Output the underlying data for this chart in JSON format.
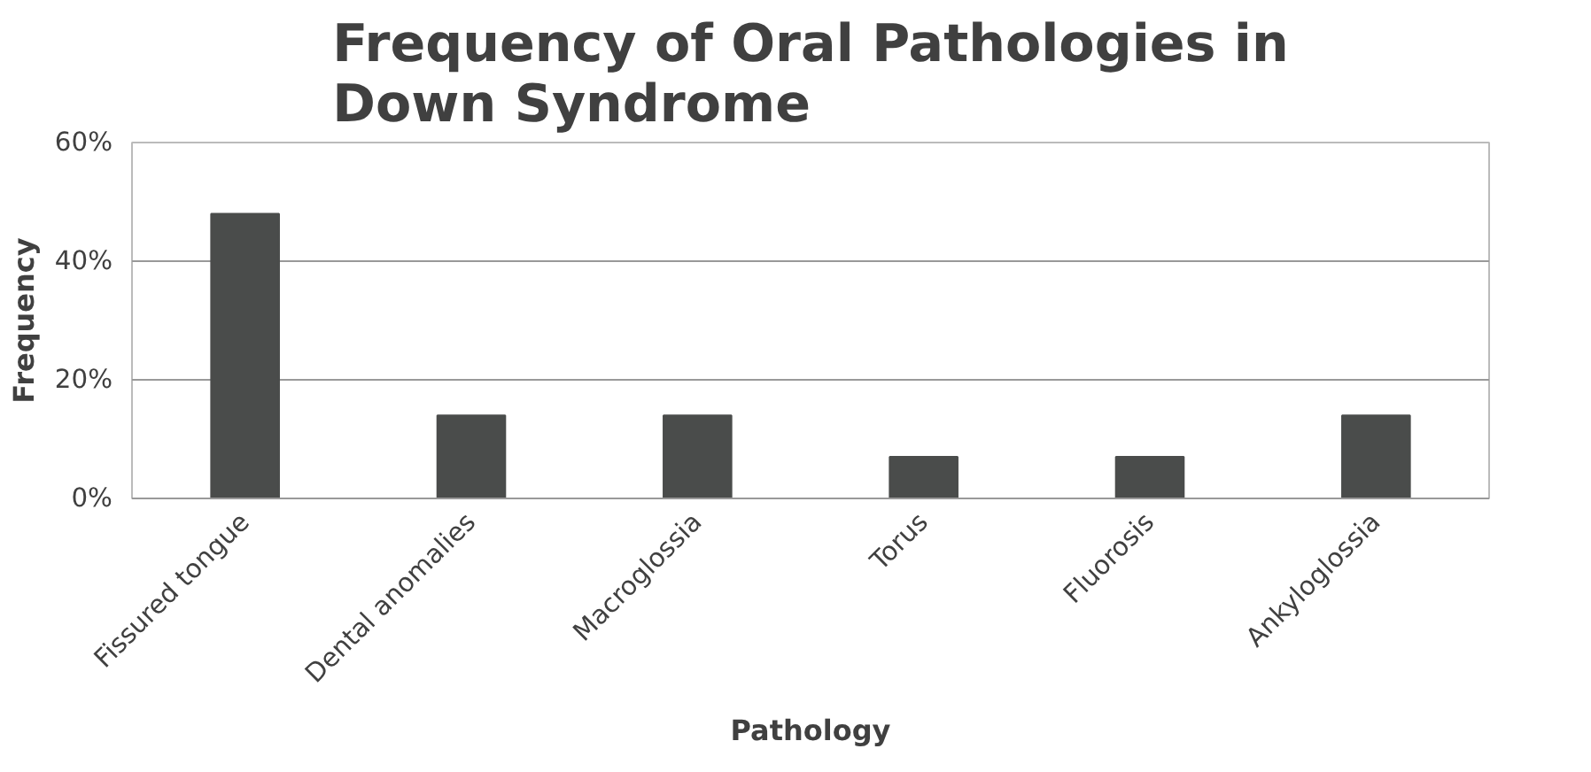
{
  "chart_data": {
    "type": "bar",
    "title": "Frequency of Oral Pathologies in Down Syndrome",
    "xlabel": "Pathology",
    "ylabel": "Frequency",
    "categories": [
      "Fissured tongue",
      "Dental anomalies",
      "Macroglossia",
      "Torus",
      "Fluorosis",
      "Ankyloglossia"
    ],
    "values": [
      48,
      14,
      14,
      7,
      7,
      14
    ],
    "color": "#4a4c4b",
    "ylim": [
      0,
      60
    ],
    "yticks": [
      {
        "value": 0,
        "label": "0%"
      },
      {
        "value": 20,
        "label": "20%"
      },
      {
        "value": 40,
        "label": "40%"
      },
      {
        "value": 60,
        "label": "60%"
      }
    ],
    "grid": "y"
  }
}
